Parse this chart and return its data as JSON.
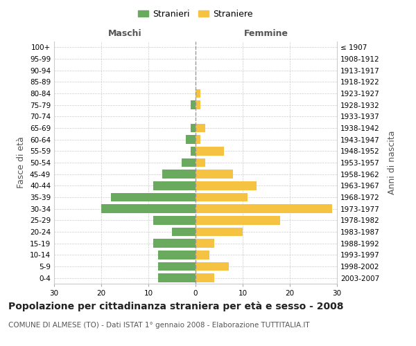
{
  "age_groups": [
    "0-4",
    "5-9",
    "10-14",
    "15-19",
    "20-24",
    "25-29",
    "30-34",
    "35-39",
    "40-44",
    "45-49",
    "50-54",
    "55-59",
    "60-64",
    "65-69",
    "70-74",
    "75-79",
    "80-84",
    "85-89",
    "90-94",
    "95-99",
    "100+"
  ],
  "birth_years": [
    "2003-2007",
    "1998-2002",
    "1993-1997",
    "1988-1992",
    "1983-1987",
    "1978-1982",
    "1973-1977",
    "1968-1972",
    "1963-1967",
    "1958-1962",
    "1953-1957",
    "1948-1952",
    "1943-1947",
    "1938-1942",
    "1933-1937",
    "1928-1932",
    "1923-1927",
    "1918-1922",
    "1913-1917",
    "1908-1912",
    "≤ 1907"
  ],
  "males": [
    8,
    8,
    8,
    9,
    5,
    9,
    20,
    18,
    9,
    7,
    3,
    1,
    2,
    1,
    0,
    1,
    0,
    0,
    0,
    0,
    0
  ],
  "females": [
    4,
    7,
    3,
    4,
    10,
    18,
    29,
    11,
    13,
    8,
    2,
    6,
    1,
    2,
    0,
    1,
    1,
    0,
    0,
    0,
    0
  ],
  "male_color": "#6aaa5e",
  "female_color": "#f5c242",
  "background_color": "#ffffff",
  "grid_color": "#cccccc",
  "title": "Popolazione per cittadinanza straniera per età e sesso - 2008",
  "subtitle": "COMUNE DI ALMESE (TO) - Dati ISTAT 1° gennaio 2008 - Elaborazione TUTTITALIA.IT",
  "xlabel_left": "Maschi",
  "xlabel_right": "Femmine",
  "ylabel_left": "Fasce di età",
  "ylabel_right": "Anni di nascita",
  "legend_male": "Stranieri",
  "legend_female": "Straniere",
  "xlim": 30,
  "title_fontsize": 10,
  "subtitle_fontsize": 7.5,
  "tick_fontsize": 7.5,
  "label_fontsize": 9
}
